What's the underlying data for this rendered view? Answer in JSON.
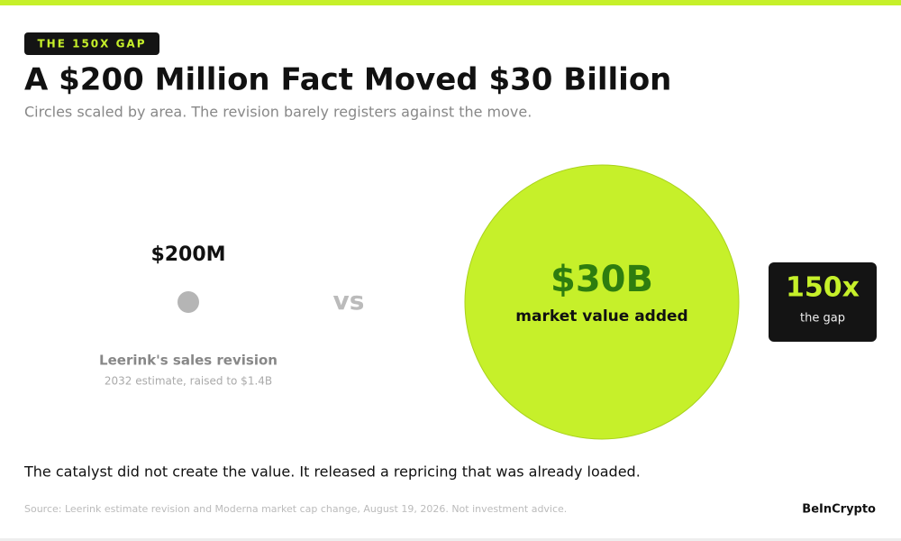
{
  "badge": "THE 150X GAP",
  "title": "A $200 Million Fact Moved $30 Billion",
  "subtitle": "Circles scaled by area. The revision barely registers against the move.",
  "left": {
    "value": "$200M",
    "label": "Leerink's sales revision",
    "note": "2032 estimate, raised to $1.4B"
  },
  "separator": "vs",
  "right": {
    "value": "$30B",
    "label": "market value added"
  },
  "gap": {
    "value": "150x",
    "label": "the gap"
  },
  "statement": "The catalyst did not create the value. It released a repricing that was already loaded.",
  "source": "Source: Leerink estimate revision and Moderna market cap change, August 19, 2026. Not investment advice.",
  "brand": "BeInCrypto"
}
